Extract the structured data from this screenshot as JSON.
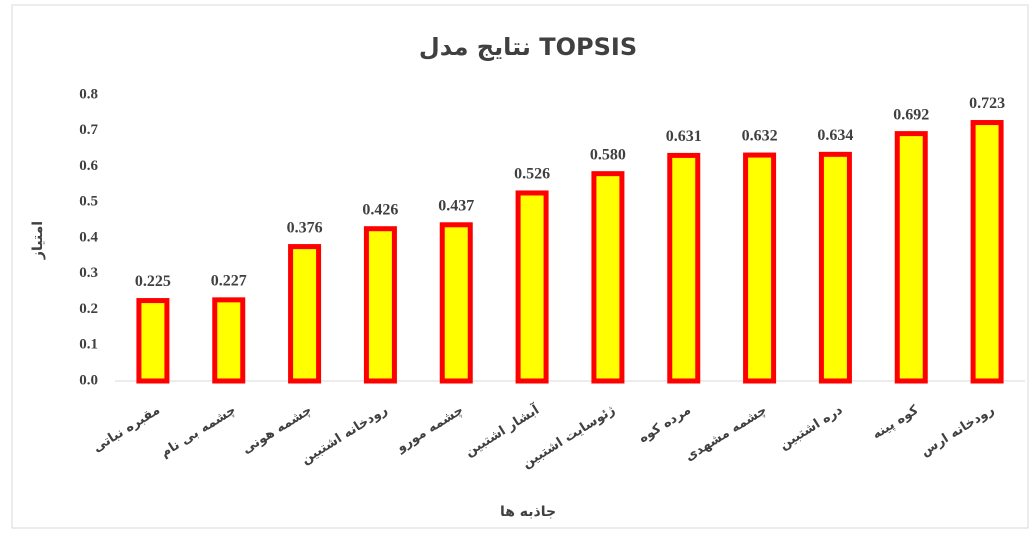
{
  "chart_data": {
    "type": "bar",
    "title": "نتایج مدل TOPSIS",
    "y_label": "امتیاز",
    "x_label": "جاذبه ها",
    "categories": [
      "مقبره نباتی",
      "چشمه بی نام",
      "چشمه هونی",
      "رودخانه اشتبین",
      "چشمه مورو",
      "آبشار اشتبین",
      "ژئوسایت اشتبین",
      "مرده کوه",
      "چشمه مشهدی",
      "دره اشتبین",
      "کوه پینه",
      "رودخانه ارس"
    ],
    "values": [
      0.225,
      0.227,
      0.376,
      0.426,
      0.437,
      0.526,
      0.58,
      0.631,
      0.632,
      0.634,
      0.692,
      0.723
    ],
    "value_labels": [
      "0.225",
      "0.227",
      "0.376",
      "0.426",
      "0.437",
      "0.526",
      "0.580",
      "0.631",
      "0.632",
      "0.634",
      "0.692",
      "0.723"
    ],
    "color": "#ffff00",
    "edge_color": "#ff0000",
    "ylim": [
      0,
      0.8
    ],
    "yticks": [
      {
        "value": 0,
        "label": "0.0"
      },
      0.1,
      0.2,
      0.3,
      0.4,
      0.5,
      0.6,
      0.7,
      0.8
    ],
    "grid": false
  }
}
